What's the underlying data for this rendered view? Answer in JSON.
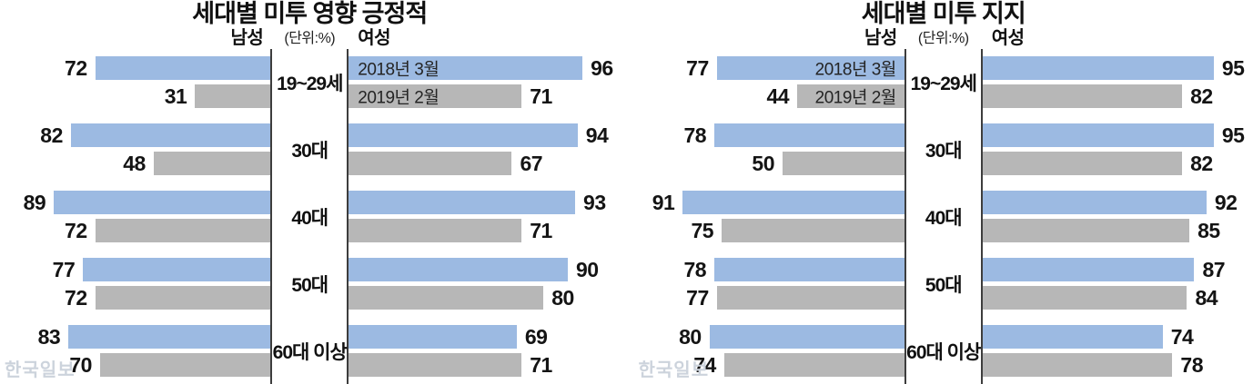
{
  "labels": {
    "male": "남성",
    "female": "여성",
    "unit": "(단위:%)"
  },
  "legend": [
    "2018년 3월",
    "2019년 2월"
  ],
  "watermark": "한국일보",
  "colors": {
    "series_2018": "#9cbae2",
    "series_2019": "#b7b7b7",
    "axis_line": "#3d3d3d",
    "value_text": "#141414",
    "watermark": "#ccd3dc"
  },
  "chart_data": [
    {
      "type": "bar",
      "orientation": "horizontal",
      "layout": "butterfly (male bars grow left, female bars grow right from center axis)",
      "title": "세대별 미투 영향 긍정적",
      "unit": "%",
      "xlim": [
        0,
        100
      ],
      "grid": false,
      "legend_position": "inside-female-bars-first-row",
      "categories": [
        "19~29세",
        "30대",
        "40대",
        "50대",
        "60대 이상"
      ],
      "series": [
        {
          "name": "2018년 3월",
          "side": "male",
          "values": [
            72,
            82,
            89,
            77,
            83
          ]
        },
        {
          "name": "2019년 2월",
          "side": "male",
          "values": [
            31,
            48,
            72,
            72,
            70
          ]
        },
        {
          "name": "2018년 3월",
          "side": "female",
          "values": [
            96,
            94,
            93,
            90,
            69
          ]
        },
        {
          "name": "2019년 2월",
          "side": "female",
          "values": [
            71,
            67,
            71,
            80,
            71
          ]
        }
      ]
    },
    {
      "type": "bar",
      "orientation": "horizontal",
      "layout": "butterfly (male bars grow left, female bars grow right from center axis)",
      "title": "세대별 미투 지지",
      "unit": "%",
      "xlim": [
        0,
        100
      ],
      "grid": false,
      "legend_position": "inside-male-bars-first-row",
      "categories": [
        "19~29세",
        "30대",
        "40대",
        "50대",
        "60대 이상"
      ],
      "series": [
        {
          "name": "2018년 3월",
          "side": "male",
          "values": [
            77,
            78,
            91,
            78,
            80
          ]
        },
        {
          "name": "2019년 2월",
          "side": "male",
          "values": [
            44,
            50,
            75,
            77,
            74
          ]
        },
        {
          "name": "2018년 3월",
          "side": "female",
          "values": [
            95,
            95,
            92,
            87,
            74
          ]
        },
        {
          "name": "2019년 2월",
          "side": "female",
          "values": [
            82,
            82,
            85,
            84,
            78
          ]
        }
      ]
    }
  ]
}
